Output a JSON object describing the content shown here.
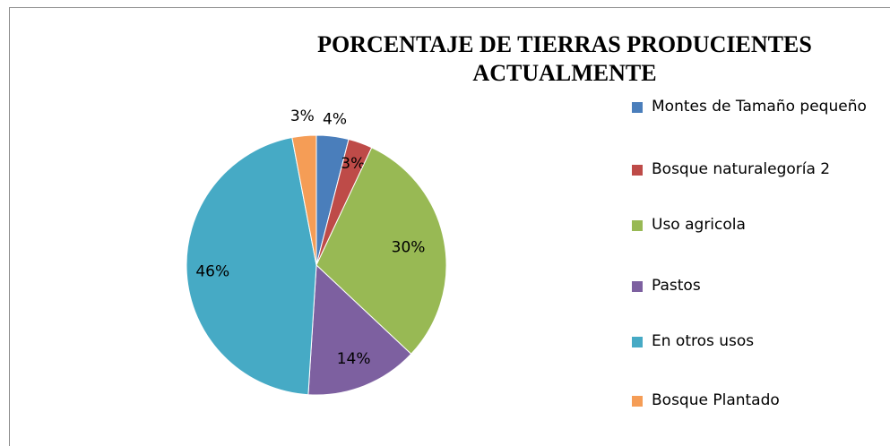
{
  "chart_data": {
    "type": "pie",
    "title": "PORCENTAJE DE TIERRAS PRODUCIENTES ACTUALMENTE",
    "categories": [
      "Montes de Tamaño pequeño",
      "Bosque naturalegoría 2",
      "Uso agricola",
      "Pastos",
      "En otros usos",
      "Bosque Plantado"
    ],
    "values": [
      4,
      3,
      30,
      14,
      46,
      3
    ],
    "value_labels": [
      "4%",
      "3%",
      "30%",
      "14%",
      "46%",
      "3%"
    ],
    "colors": [
      "#4a7ebb",
      "#be4b48",
      "#98b954",
      "#7d60a0",
      "#46aac5",
      "#f59d56"
    ],
    "legend": "right"
  }
}
